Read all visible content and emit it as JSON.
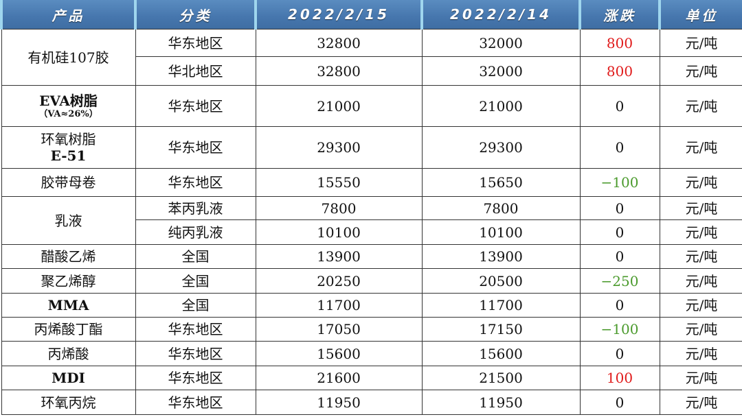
{
  "header": [
    "产品",
    "分类",
    "2022/2/15",
    "2022/2/14",
    "涨跌",
    "单位"
  ],
  "colors": {
    "header_bg": "#4676ad",
    "up": "#e01b1b",
    "down": "#4a9a2c"
  },
  "rows": [
    {
      "product": "有机硅107胶",
      "product_sub": "",
      "rowspan": 2,
      "region": "华东地区",
      "p1": "32800",
      "p0": "32000",
      "change": "800",
      "unit": "元/吨"
    },
    {
      "region": "华北地区",
      "p1": "32800",
      "p0": "32000",
      "change": "800",
      "unit": "元/吨"
    },
    {
      "product": "EVA树脂",
      "product_sub": "（VA≈26%）",
      "rowspan": 1,
      "region": "华东地区",
      "p1": "21000",
      "p0": "21000",
      "change": "0",
      "unit": "元/吨"
    },
    {
      "product": "环氧树脂",
      "product_sub": "E-51",
      "rowspan": 1,
      "region": "华东地区",
      "p1": "29300",
      "p0": "29300",
      "change": "0",
      "unit": "元/吨"
    },
    {
      "product": "胶带母卷",
      "product_sub": "",
      "rowspan": 1,
      "region": "华东地区",
      "p1": "15550",
      "p0": "15650",
      "change": "−100",
      "unit": "元/吨"
    },
    {
      "product": "乳液",
      "product_sub": "",
      "rowspan": 2,
      "region": "苯丙乳液",
      "p1": "7800",
      "p0": "7800",
      "change": "0",
      "unit": "元/吨"
    },
    {
      "region": "纯丙乳液",
      "p1": "10100",
      "p0": "10100",
      "change": "0",
      "unit": "元/吨"
    },
    {
      "product": "醋酸乙烯",
      "product_sub": "",
      "rowspan": 1,
      "region": "全国",
      "p1": "13900",
      "p0": "13900",
      "change": "0",
      "unit": "元/吨"
    },
    {
      "product": "聚乙烯醇",
      "product_sub": "",
      "rowspan": 1,
      "region": "全国",
      "p1": "20250",
      "p0": "20500",
      "change": "−250",
      "unit": "元/吨"
    },
    {
      "product": "MMA",
      "product_sub": "",
      "rowspan": 1,
      "region": "全国",
      "p1": "11700",
      "p0": "11700",
      "change": "0",
      "unit": "元/吨"
    },
    {
      "product": "丙烯酸丁酯",
      "product_sub": "",
      "rowspan": 1,
      "region": "华东地区",
      "p1": "17050",
      "p0": "17150",
      "change": "−100",
      "unit": "元/吨"
    },
    {
      "product": "丙烯酸",
      "product_sub": "",
      "rowspan": 1,
      "region": "华东地区",
      "p1": "15600",
      "p0": "15600",
      "change": "0",
      "unit": "元/吨"
    },
    {
      "product": "MDI",
      "product_sub": "",
      "rowspan": 1,
      "region": "华东地区",
      "p1": "21600",
      "p0": "21500",
      "change": "100",
      "unit": "元/吨"
    },
    {
      "product": "环氧丙烷",
      "product_sub": "",
      "rowspan": 1,
      "region": "华东地区",
      "p1": "11950",
      "p0": "11950",
      "change": "0",
      "unit": "元/吨"
    }
  ]
}
